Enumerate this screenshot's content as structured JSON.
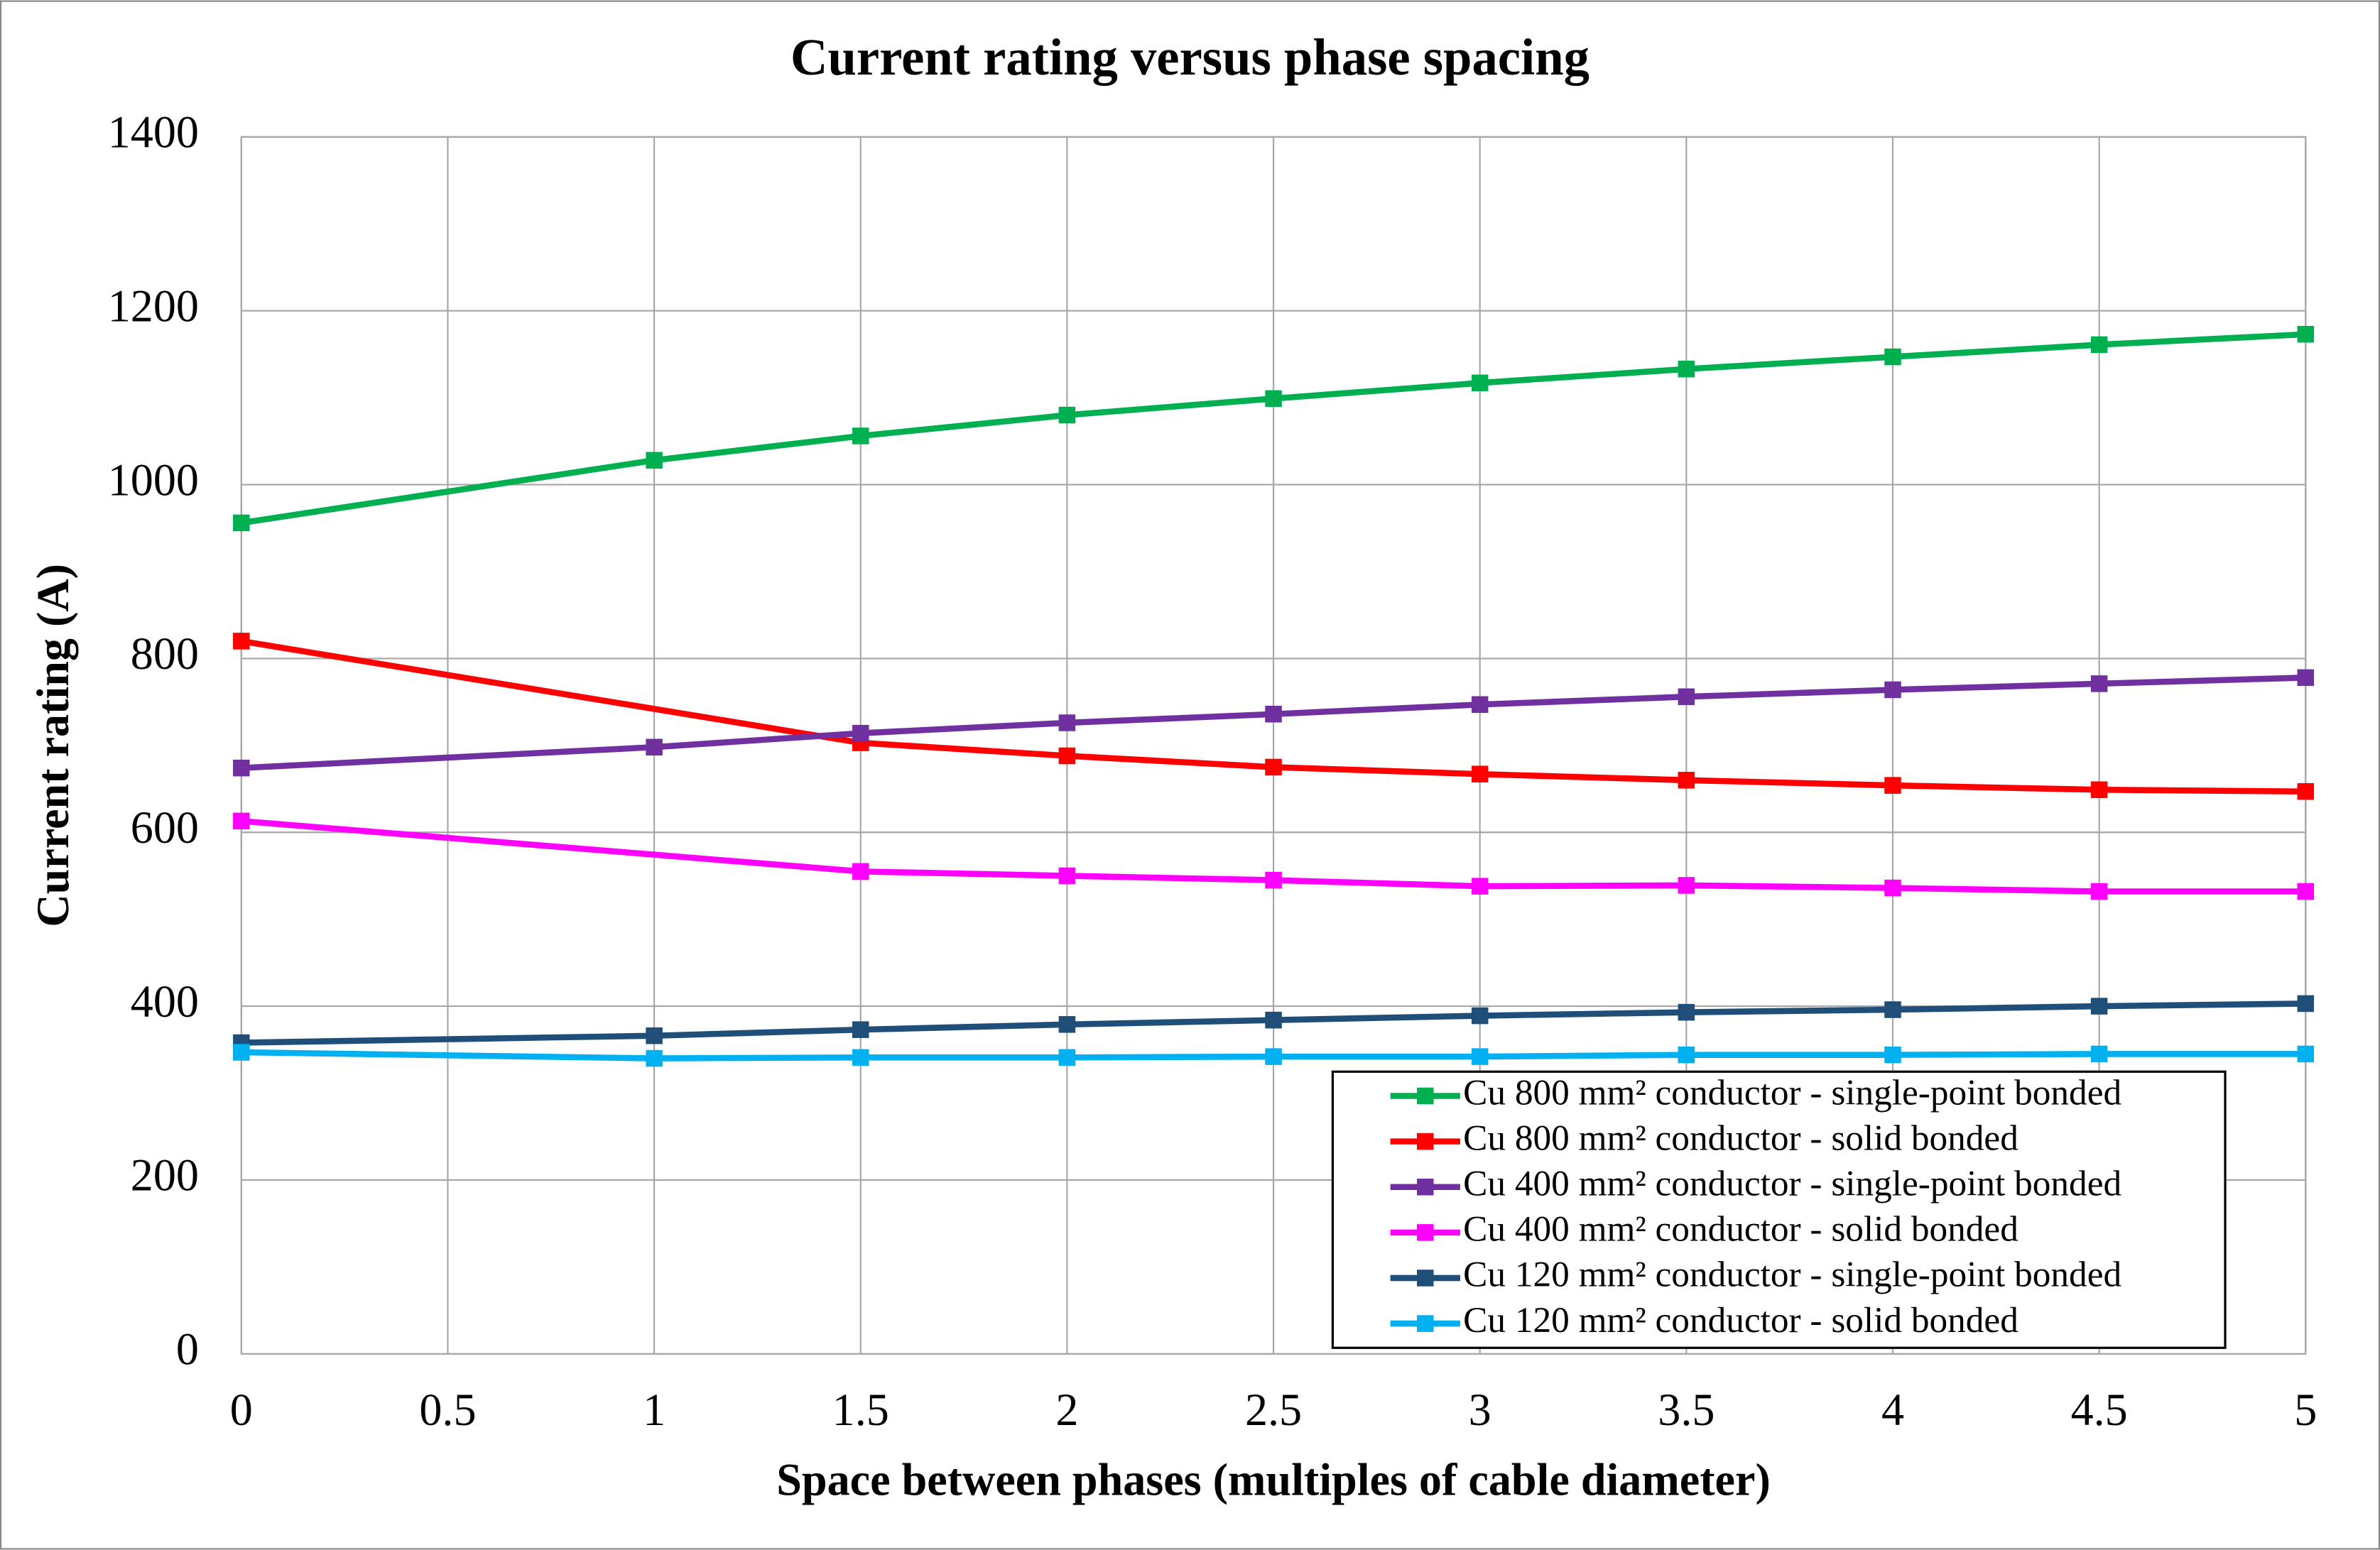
{
  "chart_data": {
    "type": "line",
    "title": "Current rating versus phase spacing",
    "x_label": "Space between phases (multiples of cable diameter)",
    "y_label": "Current rating (A)",
    "xlim": [
      0,
      5
    ],
    "xticks": [
      0,
      0.5,
      1,
      1.5,
      2,
      2.5,
      3,
      3.5,
      4,
      4.5,
      5
    ],
    "ylim": [
      0,
      1400
    ],
    "yticks": [
      0,
      200,
      400,
      600,
      800,
      1000,
      1200,
      1400
    ],
    "grid": true,
    "legend": "lower right",
    "series": [
      {
        "name": "Cu 800 mm² conductor - single-point bonded",
        "color": "#00b050",
        "x": [
          0,
          1,
          1.5,
          2,
          2.5,
          3,
          3.5,
          4,
          4.5,
          5
        ],
        "values": [
          956,
          1028,
          1056,
          1080,
          1099,
          1117,
          1133,
          1147,
          1161,
          1173
        ]
      },
      {
        "name": "Cu 800 mm² conductor - solid bonded",
        "color": "#ff0000",
        "x": [
          0,
          1.5,
          2,
          2.5,
          3,
          3.5,
          4,
          4.5,
          5
        ],
        "values": [
          820,
          703,
          688,
          675,
          667,
          660,
          654,
          649,
          647
        ]
      },
      {
        "name": "Cu 400 mm² conductor - single-point bonded",
        "color": "#7030a0",
        "x": [
          0,
          1,
          1.5,
          2,
          2.5,
          3,
          3.5,
          4,
          4.5,
          5
        ],
        "values": [
          674,
          698,
          714,
          726,
          736,
          747,
          756,
          764,
          771,
          778
        ]
      },
      {
        "name": "Cu 400 mm² conductor - solid bonded",
        "color": "#ff00ff",
        "x": [
          0,
          1.5,
          2,
          2.5,
          3,
          3.5,
          4,
          4.5,
          5
        ],
        "values": [
          613,
          555,
          550,
          545,
          538,
          539,
          536,
          532,
          532
        ]
      },
      {
        "name": "Cu 120 mm² conductor - single-point bonded",
        "color": "#1f4e79",
        "x": [
          0,
          1,
          1.5,
          2,
          2.5,
          3,
          3.5,
          4,
          4.5,
          5
        ],
        "values": [
          358,
          366,
          373,
          379,
          384,
          389,
          393,
          396,
          400,
          403
        ]
      },
      {
        "name": "Cu 120 mm² conductor - solid bonded",
        "color": "#00b0f0",
        "x": [
          0,
          1,
          1.5,
          2,
          2.5,
          3,
          3.5,
          4,
          4.5,
          5
        ],
        "values": [
          347,
          340,
          341,
          341,
          342,
          342,
          344,
          344,
          345,
          345
        ]
      }
    ]
  }
}
